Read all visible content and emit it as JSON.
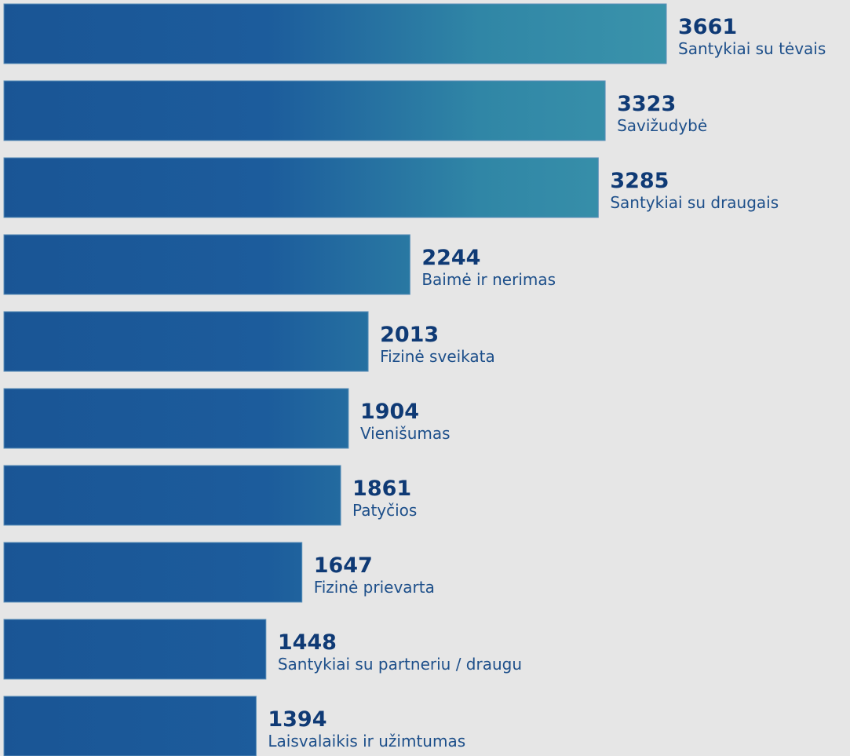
{
  "chart_data": {
    "type": "bar",
    "orientation": "horizontal",
    "categories": [
      "Santykiai su tėvais",
      "Savižudybė",
      "Santykiai su draugais",
      "Baimė ir nerimas",
      "Fizinė sveikata",
      "Vienišumas",
      "Patyčios",
      "Fizinė prievarta",
      "Santykiai su partneriu / draugu",
      "Laisvalaikis ir užimtumas"
    ],
    "values": [
      3661,
      3323,
      3285,
      2244,
      2013,
      1904,
      1861,
      1647,
      1448,
      1394
    ],
    "color": "#1a5595"
  }
}
